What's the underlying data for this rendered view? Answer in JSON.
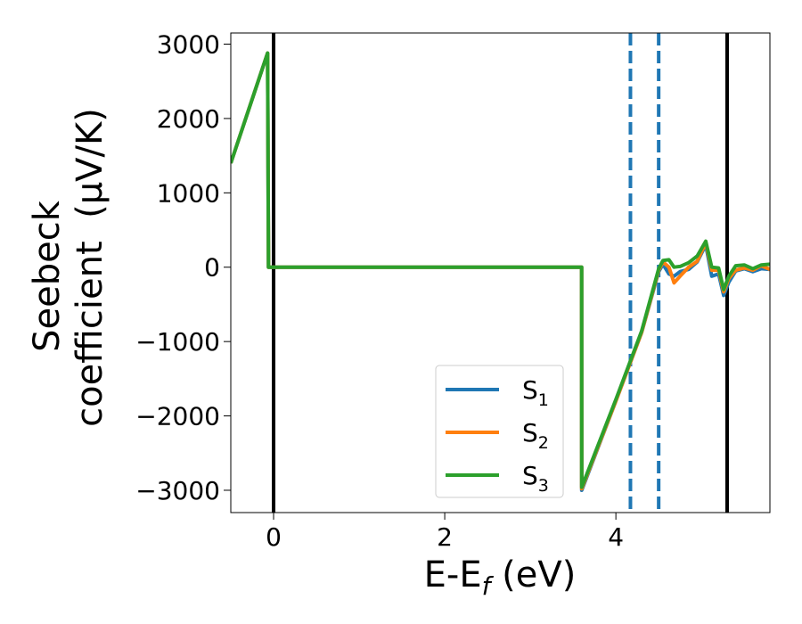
{
  "chart_data": {
    "type": "line",
    "xlabel": "E-E_f (eV)",
    "ylabel": "Seebeck coefficient (μV/K)",
    "ylabel_lines": [
      "Seebeck",
      "coefficient  (μV/K)"
    ],
    "xlim": [
      -0.5,
      5.8
    ],
    "ylim": [
      -3300,
      3150
    ],
    "xticks": [
      0,
      2,
      4
    ],
    "xtick_labels": [
      "0",
      "2",
      "4"
    ],
    "yticks": [
      3000,
      2000,
      1000,
      0,
      -1000,
      -2000,
      -3000
    ],
    "ytick_labels": [
      "3000",
      "2000",
      "1000",
      "0",
      "−1000",
      "−2000",
      "−3000"
    ],
    "grid": false,
    "legend_position": "lower-right",
    "vlines_solid": [
      0.0,
      5.3
    ],
    "vlines_dashed": [
      4.17,
      4.5
    ],
    "series": [
      {
        "name": "S₁",
        "label_base": "S",
        "label_sub": "1",
        "color": "#1f77b4",
        "x": [
          -0.5,
          -0.07,
          -0.06,
          3.6,
          3.601,
          4.0,
          4.3,
          4.5,
          4.55,
          4.62,
          4.68,
          4.75,
          4.85,
          4.95,
          5.05,
          5.12,
          5.2,
          5.26,
          5.32,
          5.4,
          5.5,
          5.6,
          5.7,
          5.8
        ],
        "values": [
          1400,
          2880,
          0,
          0,
          -3000,
          -1800,
          -880,
          -60,
          40,
          -90,
          -120,
          -60,
          -30,
          70,
          300,
          -120,
          -90,
          -380,
          -200,
          -50,
          -20,
          -60,
          -20,
          -30
        ]
      },
      {
        "name": "S₂",
        "label_base": "S",
        "label_sub": "2",
        "color": "#ff7f0e",
        "x": [
          -0.5,
          -0.07,
          -0.06,
          3.6,
          3.601,
          4.0,
          4.3,
          4.5,
          4.55,
          4.62,
          4.68,
          4.75,
          4.85,
          4.95,
          5.05,
          5.12,
          5.2,
          5.26,
          5.32,
          5.4,
          5.5,
          5.6,
          5.7,
          5.8
        ],
        "values": [
          1400,
          2880,
          0,
          0,
          -2980,
          -1800,
          -880,
          -40,
          70,
          0,
          -210,
          -120,
          0,
          80,
          330,
          -40,
          -40,
          -330,
          -150,
          -40,
          -10,
          -40,
          20,
          -30
        ]
      },
      {
        "name": "S₃",
        "label_base": "S",
        "label_sub": "3",
        "color": "#2ca02c",
        "x": [
          -0.5,
          -0.07,
          -0.06,
          3.6,
          3.601,
          4.0,
          4.3,
          4.5,
          4.55,
          4.62,
          4.68,
          4.75,
          4.85,
          4.95,
          5.05,
          5.12,
          5.2,
          5.26,
          5.32,
          5.4,
          5.5,
          5.6,
          5.7,
          5.8
        ],
        "values": [
          1400,
          2880,
          0,
          0,
          -2960,
          -1780,
          -860,
          -20,
          90,
          100,
          0,
          10,
          60,
          150,
          350,
          0,
          -10,
          -300,
          -120,
          20,
          30,
          -20,
          30,
          40
        ]
      }
    ]
  }
}
